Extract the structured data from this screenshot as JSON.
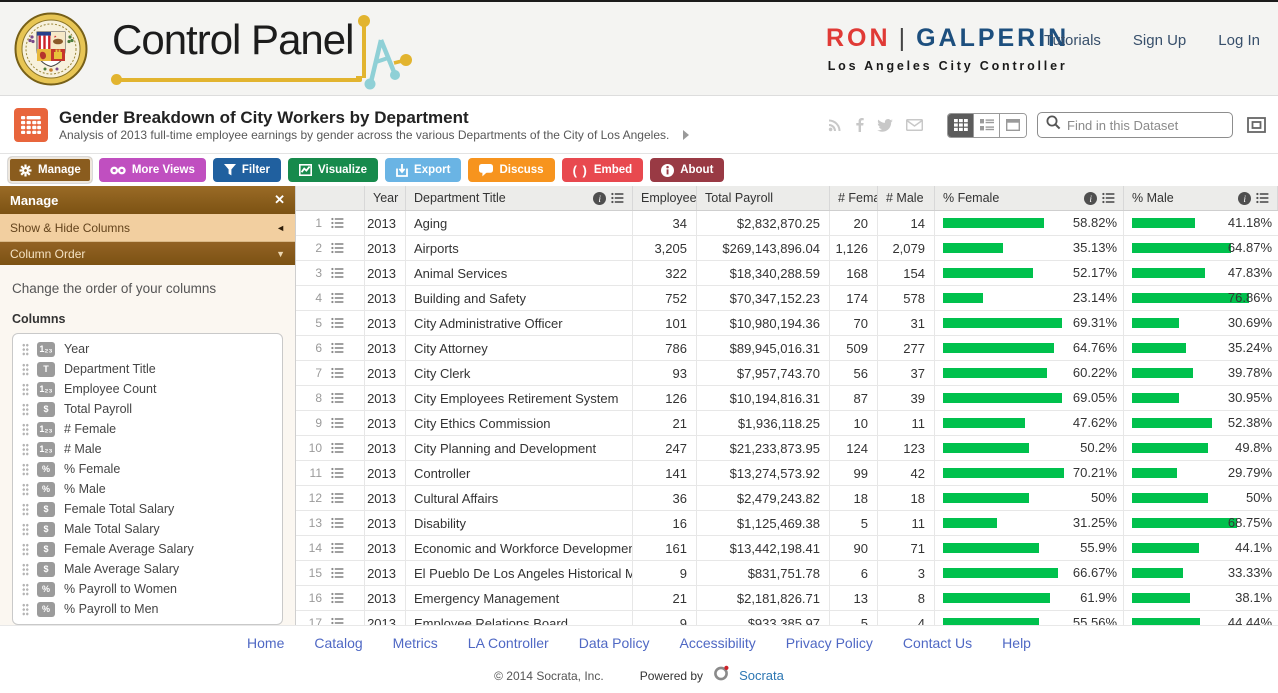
{
  "header": {
    "logo_text": "Control Panel",
    "brand_first": "RON",
    "brand_divider": "|",
    "brand_last": "GALPERIN",
    "brand_sub": "Los Angeles City Controller",
    "nav": [
      {
        "label": "Tutorials"
      },
      {
        "label": "Sign Up"
      },
      {
        "label": "Log In"
      }
    ]
  },
  "dataset_bar": {
    "title": "Gender Breakdown of City Workers by Department",
    "description": "Analysis of 2013 full-time employee earnings by gender across the various Departments of the City of Los Angeles.",
    "search_placeholder": "Find in this Dataset",
    "social_icons": [
      "rss-icon",
      "facebook-icon",
      "twitter-icon",
      "email-icon"
    ],
    "view_toggles": [
      "table-view",
      "rich-list-view",
      "page-view"
    ]
  },
  "toolbar": {
    "buttons": [
      {
        "label": "Manage",
        "icon": "gear-icon",
        "color": "#8a5c1e",
        "active": true
      },
      {
        "label": "More Views",
        "icon": "binoculars-icon",
        "color": "#c04fc0",
        "active": false
      },
      {
        "label": "Filter",
        "icon": "funnel-icon",
        "color": "#20609f",
        "active": false
      },
      {
        "label": "Visualize",
        "icon": "chart-icon",
        "color": "#178a4c",
        "active": false
      },
      {
        "label": "Export",
        "icon": "export-icon",
        "color": "#6ab4e4",
        "active": false
      },
      {
        "label": "Discuss",
        "icon": "speech-bubble-icon",
        "color": "#f7941e",
        "active": false
      },
      {
        "label": "Embed",
        "icon": "code-brackets-icon",
        "color": "#e8494f",
        "active": false
      },
      {
        "label": "About",
        "icon": "info-icon",
        "color": "#993a44",
        "active": false
      }
    ]
  },
  "sidebar": {
    "title": "Manage",
    "close_glyph": "✕",
    "sections": [
      {
        "label": "Show & Hide Columns",
        "arrow": "◄"
      },
      {
        "label": "Column Order",
        "arrow": "▼"
      }
    ],
    "helper_text": "Change the order of your columns",
    "columns_label": "Columns",
    "columns": [
      {
        "type": "number",
        "label": "Year"
      },
      {
        "type": "text",
        "label": "Department Title"
      },
      {
        "type": "number",
        "label": "Employee Count"
      },
      {
        "type": "money",
        "label": "Total Payroll"
      },
      {
        "type": "number",
        "label": "# Female"
      },
      {
        "type": "number",
        "label": "# Male"
      },
      {
        "type": "percent",
        "label": "% Female"
      },
      {
        "type": "percent",
        "label": "% Male"
      },
      {
        "type": "money",
        "label": "Female Total Salary"
      },
      {
        "type": "money",
        "label": "Male Total Salary"
      },
      {
        "type": "money",
        "label": "Female Average Salary"
      },
      {
        "type": "money",
        "label": "Male Average Salary"
      },
      {
        "type": "percent",
        "label": "% Payroll to Women"
      },
      {
        "type": "percent",
        "label": "% Payroll to Men"
      }
    ]
  },
  "table": {
    "headers": [
      {
        "label": "Year",
        "has_icons": false
      },
      {
        "label": "Department Title",
        "has_icons": true
      },
      {
        "label": "Employee C",
        "has_icons": false
      },
      {
        "label": "Total Payroll",
        "has_icons": false
      },
      {
        "label": "# Female",
        "has_icons": false
      },
      {
        "label": "# Male",
        "has_icons": false
      },
      {
        "label": "% Female",
        "has_icons": true
      },
      {
        "label": "% Male",
        "has_icons": true
      }
    ],
    "rows": [
      {
        "num": "1",
        "year": "2013",
        "department": "Aging",
        "employee_count": "34",
        "total_payroll": "$2,832,870.25",
        "female": "20",
        "male": "14",
        "pct_female": 58.82,
        "pct_female_label": "58.82%",
        "pct_male": 41.18,
        "pct_male_label": "41.18%"
      },
      {
        "num": "2",
        "year": "2013",
        "department": "Airports",
        "employee_count": "3,205",
        "total_payroll": "$269,143,896.04",
        "female": "1,126",
        "male": "2,079",
        "pct_female": 35.13,
        "pct_female_label": "35.13%",
        "pct_male": 64.87,
        "pct_male_label": "64.87%"
      },
      {
        "num": "3",
        "year": "2013",
        "department": "Animal Services",
        "employee_count": "322",
        "total_payroll": "$18,340,288.59",
        "female": "168",
        "male": "154",
        "pct_female": 52.17,
        "pct_female_label": "52.17%",
        "pct_male": 47.83,
        "pct_male_label": "47.83%"
      },
      {
        "num": "4",
        "year": "2013",
        "department": "Building and Safety",
        "employee_count": "752",
        "total_payroll": "$70,347,152.23",
        "female": "174",
        "male": "578",
        "pct_female": 23.14,
        "pct_female_label": "23.14%",
        "pct_male": 76.86,
        "pct_male_label": "76.86%"
      },
      {
        "num": "5",
        "year": "2013",
        "department": "City Administrative Officer",
        "employee_count": "101",
        "total_payroll": "$10,980,194.36",
        "female": "70",
        "male": "31",
        "pct_female": 69.31,
        "pct_female_label": "69.31%",
        "pct_male": 30.69,
        "pct_male_label": "30.69%"
      },
      {
        "num": "6",
        "year": "2013",
        "department": "City Attorney",
        "employee_count": "786",
        "total_payroll": "$89,945,016.31",
        "female": "509",
        "male": "277",
        "pct_female": 64.76,
        "pct_female_label": "64.76%",
        "pct_male": 35.24,
        "pct_male_label": "35.24%"
      },
      {
        "num": "7",
        "year": "2013",
        "department": "City Clerk",
        "employee_count": "93",
        "total_payroll": "$7,957,743.70",
        "female": "56",
        "male": "37",
        "pct_female": 60.22,
        "pct_female_label": "60.22%",
        "pct_male": 39.78,
        "pct_male_label": "39.78%"
      },
      {
        "num": "8",
        "year": "2013",
        "department": "City Employees Retirement System",
        "employee_count": "126",
        "total_payroll": "$10,194,816.31",
        "female": "87",
        "male": "39",
        "pct_female": 69.05,
        "pct_female_label": "69.05%",
        "pct_male": 30.95,
        "pct_male_label": "30.95%"
      },
      {
        "num": "9",
        "year": "2013",
        "department": "City Ethics Commission",
        "employee_count": "21",
        "total_payroll": "$1,936,118.25",
        "female": "10",
        "male": "11",
        "pct_female": 47.62,
        "pct_female_label": "47.62%",
        "pct_male": 52.38,
        "pct_male_label": "52.38%"
      },
      {
        "num": "10",
        "year": "2013",
        "department": "City Planning and Development",
        "employee_count": "247",
        "total_payroll": "$21,233,873.95",
        "female": "124",
        "male": "123",
        "pct_female": 50.2,
        "pct_female_label": "50.2%",
        "pct_male": 49.8,
        "pct_male_label": "49.8%"
      },
      {
        "num": "11",
        "year": "2013",
        "department": "Controller",
        "employee_count": "141",
        "total_payroll": "$13,274,573.92",
        "female": "99",
        "male": "42",
        "pct_female": 70.21,
        "pct_female_label": "70.21%",
        "pct_male": 29.79,
        "pct_male_label": "29.79%"
      },
      {
        "num": "12",
        "year": "2013",
        "department": "Cultural Affairs",
        "employee_count": "36",
        "total_payroll": "$2,479,243.82",
        "female": "18",
        "male": "18",
        "pct_female": 50,
        "pct_female_label": "50%",
        "pct_male": 50,
        "pct_male_label": "50%"
      },
      {
        "num": "13",
        "year": "2013",
        "department": "Disability",
        "employee_count": "16",
        "total_payroll": "$1,125,469.38",
        "female": "5",
        "male": "11",
        "pct_female": 31.25,
        "pct_female_label": "31.25%",
        "pct_male": 68.75,
        "pct_male_label": "68.75%"
      },
      {
        "num": "14",
        "year": "2013",
        "department": "Economic and Workforce Development Department",
        "employee_count": "161",
        "total_payroll": "$13,442,198.41",
        "female": "90",
        "male": "71",
        "pct_female": 55.9,
        "pct_female_label": "55.9%",
        "pct_male": 44.1,
        "pct_male_label": "44.1%"
      },
      {
        "num": "15",
        "year": "2013",
        "department": "El Pueblo De Los Angeles Historical Monument",
        "employee_count": "9",
        "total_payroll": "$831,751.78",
        "female": "6",
        "male": "3",
        "pct_female": 66.67,
        "pct_female_label": "66.67%",
        "pct_male": 33.33,
        "pct_male_label": "33.33%"
      },
      {
        "num": "16",
        "year": "2013",
        "department": "Emergency Management",
        "employee_count": "21",
        "total_payroll": "$2,181,826.71",
        "female": "13",
        "male": "8",
        "pct_female": 61.9,
        "pct_female_label": "61.9%",
        "pct_male": 38.1,
        "pct_male_label": "38.1%"
      },
      {
        "num": "17",
        "year": "2013",
        "department": "Employee Relations Board",
        "employee_count": "9",
        "total_payroll": "$933,385.97",
        "female": "5",
        "male": "4",
        "pct_female": 55.56,
        "pct_female_label": "55.56%",
        "pct_male": 44.44,
        "pct_male_label": "44.44%"
      }
    ]
  },
  "footer": {
    "links": [
      "Home",
      "Catalog",
      "Metrics",
      "LA Controller",
      "Data Policy",
      "Accessibility",
      "Privacy Policy",
      "Contact Us",
      "Help"
    ],
    "copyright": "© 2014 Socrata, Inc.",
    "powered_by": "Powered by",
    "powered_brand": "Socrata"
  },
  "colors": {
    "bar_green": "#00c14d",
    "brand_red": "#e03a36",
    "brand_navy": "#1d4f7e",
    "sidebar_brown": "#8a5a1c",
    "sidebar_tan": "#f2cfa0",
    "dataset_icon_orange": "#e8653c"
  }
}
